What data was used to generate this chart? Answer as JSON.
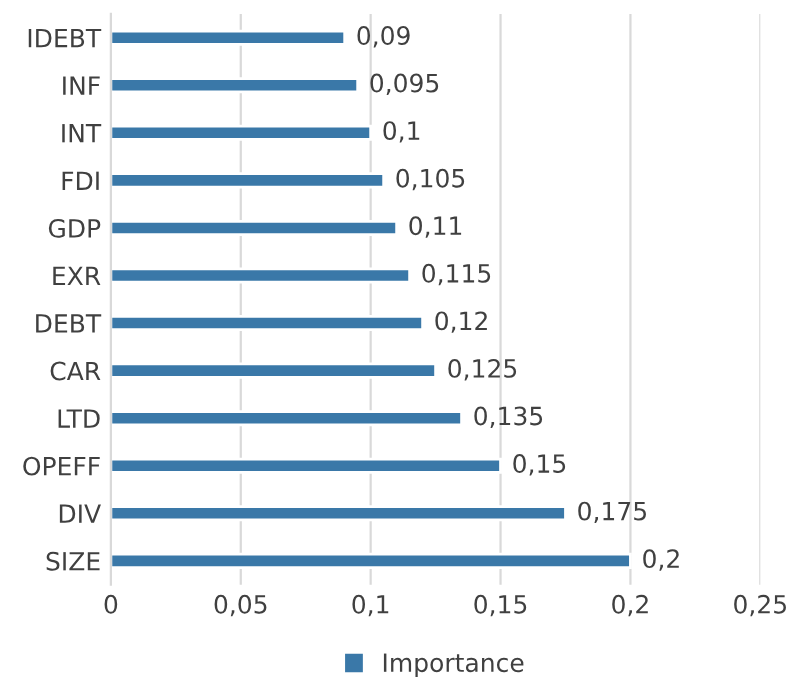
{
  "chart_data": {
    "type": "bar",
    "orientation": "horizontal",
    "categories": [
      "IDEBT",
      "INF",
      "INT",
      "FDI",
      "GDP",
      "EXR",
      "DEBT",
      "CAR",
      "LTD",
      "OPEFF",
      "DIV",
      "SIZE"
    ],
    "series": [
      {
        "name": "Importance",
        "color": "#3a78a8",
        "values": [
          0.09,
          0.095,
          0.1,
          0.105,
          0.11,
          0.115,
          0.12,
          0.125,
          0.135,
          0.15,
          0.175,
          0.2
        ],
        "value_labels": [
          "0,09",
          "0,095",
          "0,1",
          "0,105",
          "0,11",
          "0,115",
          "0,12",
          "0,125",
          "0,135",
          "0,15",
          "0,175",
          "0,2"
        ]
      }
    ],
    "xlim": [
      0,
      0.25
    ],
    "xticks": [
      {
        "value": 0,
        "label": "0"
      },
      {
        "value": 0.05,
        "label": "0,05"
      },
      {
        "value": 0.1,
        "label": "0,1"
      },
      {
        "value": 0.15,
        "label": "0,15"
      },
      {
        "value": 0.2,
        "label": "0,2"
      },
      {
        "value": 0.25,
        "label": "0,25"
      }
    ],
    "grid": "x",
    "legend": "bottom"
  }
}
